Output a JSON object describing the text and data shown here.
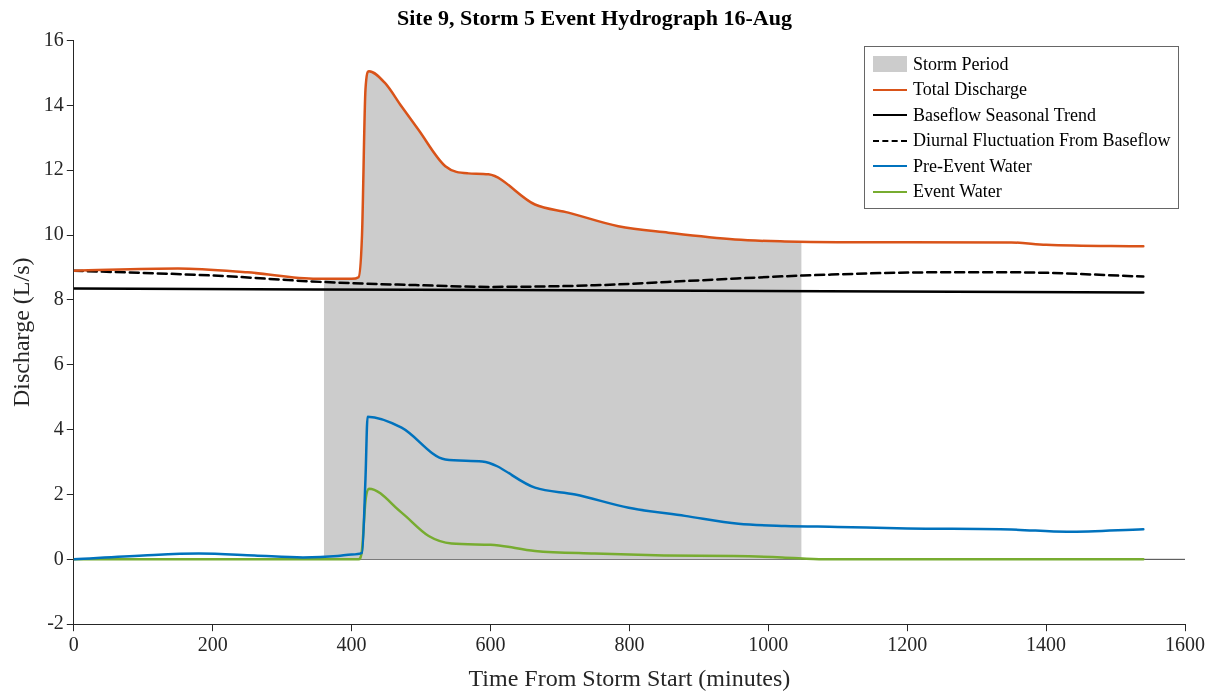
{
  "chart_data": {
    "type": "line",
    "title": "Site 9, Storm 5 Event Hydrograph 16-Aug",
    "xlabel": "Time From Storm Start (minutes)",
    "ylabel": "Discharge (L/s)",
    "xlim": [
      0,
      1600
    ],
    "xticks": [
      0,
      200,
      400,
      600,
      800,
      1000,
      1200,
      1400,
      1600
    ],
    "ylim": [
      -2,
      16
    ],
    "yticks": [
      -2,
      0,
      2,
      4,
      6,
      8,
      10,
      12,
      14,
      16
    ],
    "grid": false,
    "legend": "top right",
    "marker": "none",
    "ref_lines": [
      {
        "axis": "y",
        "value": 0,
        "color": "#404040"
      }
    ],
    "series": [
      {
        "name": "Storm Period",
        "type": "area",
        "color": "#cccccc",
        "x": [
          360,
          400,
          410,
          415,
          420,
          425,
          448,
          472,
          496,
          535,
          568,
          597,
          664,
          712,
          784,
          856,
          952,
          1024,
          1048
        ],
        "values": [
          8.65,
          8.65,
          8.7,
          10,
          14.5,
          15.05,
          14.69,
          13.96,
          13.25,
          12.12,
          11.9,
          11.87,
          10.94,
          10.69,
          10.27,
          10.07,
          9.86,
          9.8,
          9.78
        ]
      },
      {
        "name": "Total Discharge",
        "type": "line",
        "color": "#d95319",
        "line_style": "solid",
        "x": [
          0,
          150,
          250,
          350,
          400,
          410,
          415,
          420,
          425,
          448,
          472,
          496,
          535,
          568,
          597,
          664,
          712,
          784,
          856,
          952,
          1024,
          1100,
          1200,
          1350,
          1400,
          1540
        ],
        "values": [
          8.9,
          8.97,
          8.85,
          8.65,
          8.65,
          8.7,
          10,
          14.5,
          15.05,
          14.69,
          13.96,
          13.25,
          12.12,
          11.9,
          11.87,
          10.94,
          10.69,
          10.27,
          10.07,
          9.86,
          9.8,
          9.78,
          9.78,
          9.77,
          9.7,
          9.65
        ]
      },
      {
        "name": "Baseflow Seasonal Trend",
        "type": "line",
        "color": "#000000",
        "line_style": "solid",
        "x": [
          0,
          1540
        ],
        "values": [
          8.35,
          8.23
        ]
      },
      {
        "name": "Diurnal Fluctuation From Baseflow",
        "type": "line",
        "color": "#000000",
        "line_style": "dashed",
        "x": [
          0,
          200,
          360,
          500,
          600,
          750,
          900,
          1050,
          1250,
          1350,
          1540
        ],
        "values": [
          8.9,
          8.75,
          8.55,
          8.45,
          8.4,
          8.45,
          8.6,
          8.75,
          8.85,
          8.85,
          8.72
        ]
      },
      {
        "name": "Pre-Event Water",
        "type": "line",
        "color": "#0072bd",
        "line_style": "solid",
        "x": [
          0,
          100,
          180,
          260,
          330,
          380,
          400,
          415,
          420,
          423,
          472,
          535,
          588,
          664,
          722,
          799,
          880,
          957,
          1024,
          1100,
          1200,
          1350,
          1430,
          1540
        ],
        "values": [
          0,
          0.12,
          0.18,
          0.12,
          0.06,
          0.1,
          0.15,
          0.2,
          2.5,
          4.4,
          4.06,
          3.08,
          3.02,
          2.21,
          2,
          1.59,
          1.34,
          1.1,
          1.03,
          1,
          0.95,
          0.92,
          0.85,
          0.93
        ]
      },
      {
        "name": "Event Water",
        "type": "line",
        "color": "#77ac30",
        "line_style": "solid",
        "x": [
          0,
          410,
          415,
          420,
          425,
          472,
          511,
          544,
          600,
          664,
          750,
          850,
          950,
          1020,
          1080,
          1540
        ],
        "values": [
          0,
          0,
          0.3,
          1.8,
          2.18,
          1.44,
          0.72,
          0.49,
          0.45,
          0.26,
          0.18,
          0.12,
          0.1,
          0.06,
          0,
          0
        ]
      }
    ]
  }
}
